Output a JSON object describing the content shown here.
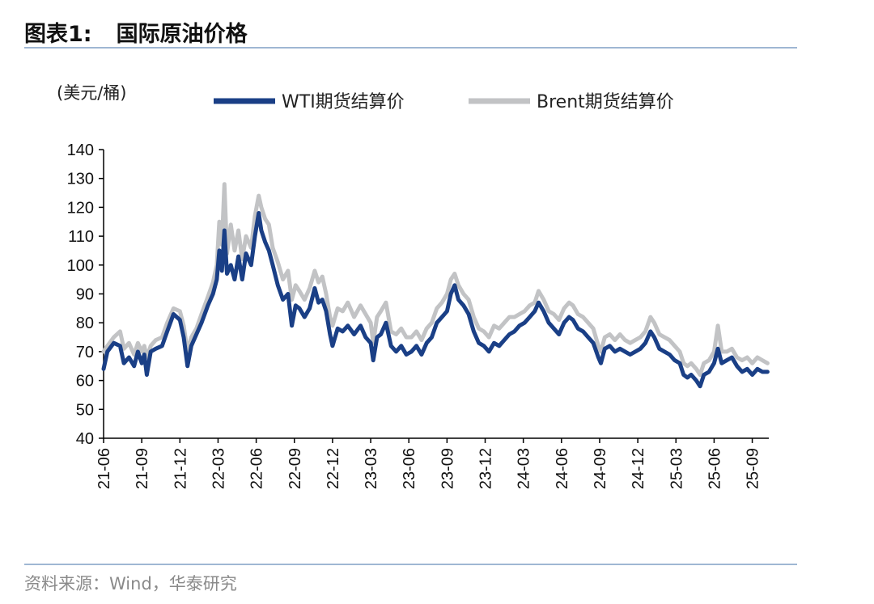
{
  "header": {
    "figure_label": "图表1:",
    "title": "国际原油价格"
  },
  "source": "资料来源：Wind，华泰研究",
  "colors": {
    "wti": "#1a3f86",
    "brent": "#c2c3c5",
    "axis": "#000000",
    "rule": "#9fb7d3"
  },
  "chart_data": {
    "type": "line",
    "title": "国际原油价格",
    "ylabel": "(美元/桶)",
    "xlabel": "",
    "ylim": [
      40,
      140
    ],
    "yticks": [
      40,
      50,
      60,
      70,
      80,
      90,
      100,
      110,
      120,
      130,
      140
    ],
    "xlim": [
      0,
      52.3
    ],
    "xticks": [
      {
        "label": "21-06",
        "pos": 0
      },
      {
        "label": "21-09",
        "pos": 3
      },
      {
        "label": "21-12",
        "pos": 6
      },
      {
        "label": "22-03",
        "pos": 9
      },
      {
        "label": "22-06",
        "pos": 12
      },
      {
        "label": "22-09",
        "pos": 15
      },
      {
        "label": "22-12",
        "pos": 18
      },
      {
        "label": "23-03",
        "pos": 21
      },
      {
        "label": "23-06",
        "pos": 24
      },
      {
        "label": "23-09",
        "pos": 27
      },
      {
        "label": "23-12",
        "pos": 30
      },
      {
        "label": "24-03",
        "pos": 33
      },
      {
        "label": "24-06",
        "pos": 36
      },
      {
        "label": "24-09",
        "pos": 39
      },
      {
        "label": "24-12",
        "pos": 42
      },
      {
        "label": "25-03",
        "pos": 45
      },
      {
        "label": "25-06",
        "pos": 48
      },
      {
        "label": "25-09",
        "pos": 51
      }
    ],
    "legend_position": "top",
    "series": [
      {
        "name": "WTI期货结算价",
        "color": "#1a3f86",
        "points": [
          [
            0,
            64
          ],
          [
            0.3,
            70
          ],
          [
            0.8,
            73
          ],
          [
            1.3,
            72
          ],
          [
            1.6,
            66
          ],
          [
            2,
            68
          ],
          [
            2.4,
            65
          ],
          [
            2.7,
            70
          ],
          [
            3,
            66
          ],
          [
            3.2,
            69
          ],
          [
            3.4,
            62
          ],
          [
            3.7,
            70
          ],
          [
            4.1,
            71
          ],
          [
            4.6,
            72
          ],
          [
            5,
            77
          ],
          [
            5.5,
            83
          ],
          [
            6,
            81
          ],
          [
            6.3,
            75
          ],
          [
            6.6,
            65
          ],
          [
            6.9,
            72
          ],
          [
            7.3,
            76
          ],
          [
            7.7,
            80
          ],
          [
            8.2,
            86
          ],
          [
            8.6,
            90
          ],
          [
            8.9,
            95
          ],
          [
            9.1,
            105
          ],
          [
            9.3,
            98
          ],
          [
            9.5,
            112
          ],
          [
            9.7,
            97
          ],
          [
            10,
            100
          ],
          [
            10.3,
            95
          ],
          [
            10.6,
            103
          ],
          [
            10.9,
            95
          ],
          [
            11.2,
            104
          ],
          [
            11.6,
            100
          ],
          [
            11.9,
            110
          ],
          [
            12.2,
            118
          ],
          [
            12.4,
            112
          ],
          [
            12.7,
            108
          ],
          [
            13,
            105
          ],
          [
            13.3,
            100
          ],
          [
            13.7,
            93
          ],
          [
            14.1,
            88
          ],
          [
            14.5,
            90
          ],
          [
            14.8,
            79
          ],
          [
            15.1,
            86
          ],
          [
            15.4,
            85
          ],
          [
            15.8,
            82
          ],
          [
            16.2,
            85
          ],
          [
            16.6,
            92
          ],
          [
            16.9,
            87
          ],
          [
            17.2,
            88
          ],
          [
            17.5,
            84
          ],
          [
            17.8,
            76
          ],
          [
            18,
            72
          ],
          [
            18.4,
            78
          ],
          [
            18.8,
            77
          ],
          [
            19.2,
            79
          ],
          [
            19.7,
            76
          ],
          [
            20.2,
            79
          ],
          [
            20.6,
            75
          ],
          [
            21,
            73
          ],
          [
            21.2,
            67
          ],
          [
            21.5,
            75
          ],
          [
            21.8,
            76
          ],
          [
            22.2,
            80
          ],
          [
            22.6,
            72
          ],
          [
            23,
            70
          ],
          [
            23.4,
            72
          ],
          [
            23.8,
            69
          ],
          [
            24.2,
            70
          ],
          [
            24.6,
            72
          ],
          [
            25,
            69
          ],
          [
            25.4,
            73
          ],
          [
            25.8,
            75
          ],
          [
            26.2,
            80
          ],
          [
            26.6,
            82
          ],
          [
            27,
            84
          ],
          [
            27.3,
            90
          ],
          [
            27.6,
            93
          ],
          [
            27.9,
            88
          ],
          [
            28.3,
            86
          ],
          [
            28.7,
            83
          ],
          [
            29.1,
            77
          ],
          [
            29.5,
            73
          ],
          [
            29.9,
            72
          ],
          [
            30.3,
            70
          ],
          [
            30.7,
            73
          ],
          [
            31.1,
            72
          ],
          [
            31.5,
            74
          ],
          [
            31.9,
            76
          ],
          [
            32.3,
            77
          ],
          [
            32.7,
            79
          ],
          [
            33.1,
            80
          ],
          [
            33.5,
            82
          ],
          [
            33.9,
            84
          ],
          [
            34.2,
            87
          ],
          [
            34.6,
            84
          ],
          [
            35,
            80
          ],
          [
            35.4,
            78
          ],
          [
            35.8,
            76
          ],
          [
            36.2,
            80
          ],
          [
            36.6,
            82
          ],
          [
            36.9,
            81
          ],
          [
            37.3,
            78
          ],
          [
            37.7,
            77
          ],
          [
            38.1,
            75
          ],
          [
            38.5,
            73
          ],
          [
            38.9,
            68
          ],
          [
            39.1,
            66
          ],
          [
            39.4,
            71
          ],
          [
            39.8,
            72
          ],
          [
            40.2,
            70
          ],
          [
            40.6,
            71
          ],
          [
            41,
            70
          ],
          [
            41.4,
            69
          ],
          [
            41.8,
            70
          ],
          [
            42.2,
            71
          ],
          [
            42.6,
            73
          ],
          [
            43,
            77
          ],
          [
            43.3,
            75
          ],
          [
            43.7,
            71
          ],
          [
            44.1,
            70
          ],
          [
            44.5,
            69
          ],
          [
            44.9,
            67
          ],
          [
            45.3,
            66
          ],
          [
            45.6,
            62
          ],
          [
            45.9,
            61
          ],
          [
            46.2,
            62
          ],
          [
            46.6,
            60
          ],
          [
            46.9,
            58
          ],
          [
            47.2,
            62
          ],
          [
            47.6,
            63
          ],
          [
            48,
            66
          ],
          [
            48.3,
            71
          ],
          [
            48.6,
            66
          ],
          [
            49,
            67
          ],
          [
            49.4,
            68
          ],
          [
            49.8,
            65
          ],
          [
            50.2,
            63
          ],
          [
            50.6,
            64
          ],
          [
            51,
            62
          ],
          [
            51.4,
            64
          ],
          [
            51.8,
            63
          ],
          [
            52.2,
            63
          ]
        ]
      },
      {
        "name": "Brent期货结算价",
        "color": "#c2c3c5",
        "points": [
          [
            0,
            70
          ],
          [
            0.3,
            72
          ],
          [
            0.8,
            75
          ],
          [
            1.3,
            77
          ],
          [
            1.6,
            71
          ],
          [
            2,
            73
          ],
          [
            2.4,
            69
          ],
          [
            2.7,
            73
          ],
          [
            3,
            70
          ],
          [
            3.2,
            72
          ],
          [
            3.4,
            68
          ],
          [
            3.7,
            72
          ],
          [
            4.1,
            74
          ],
          [
            4.6,
            75
          ],
          [
            5,
            80
          ],
          [
            5.5,
            85
          ],
          [
            6,
            84
          ],
          [
            6.3,
            79
          ],
          [
            6.6,
            70
          ],
          [
            6.9,
            75
          ],
          [
            7.3,
            78
          ],
          [
            7.7,
            83
          ],
          [
            8.2,
            89
          ],
          [
            8.6,
            94
          ],
          [
            8.9,
            100
          ],
          [
            9.1,
            115
          ],
          [
            9.3,
            107
          ],
          [
            9.5,
            128
          ],
          [
            9.7,
            104
          ],
          [
            10,
            114
          ],
          [
            10.3,
            105
          ],
          [
            10.6,
            112
          ],
          [
            10.9,
            102
          ],
          [
            11.2,
            110
          ],
          [
            11.6,
            106
          ],
          [
            11.9,
            117
          ],
          [
            12.2,
            124
          ],
          [
            12.4,
            120
          ],
          [
            12.7,
            116
          ],
          [
            13,
            114
          ],
          [
            13.3,
            106
          ],
          [
            13.7,
            101
          ],
          [
            14.1,
            95
          ],
          [
            14.5,
            98
          ],
          [
            14.8,
            88
          ],
          [
            15.1,
            93
          ],
          [
            15.4,
            91
          ],
          [
            15.8,
            88
          ],
          [
            16.2,
            92
          ],
          [
            16.6,
            98
          ],
          [
            16.9,
            94
          ],
          [
            17.2,
            96
          ],
          [
            17.5,
            90
          ],
          [
            17.8,
            82
          ],
          [
            18,
            79
          ],
          [
            18.4,
            85
          ],
          [
            18.8,
            84
          ],
          [
            19.2,
            87
          ],
          [
            19.7,
            82
          ],
          [
            20.2,
            86
          ],
          [
            20.6,
            83
          ],
          [
            21,
            80
          ],
          [
            21.2,
            73
          ],
          [
            21.5,
            82
          ],
          [
            21.8,
            84
          ],
          [
            22.2,
            87
          ],
          [
            22.6,
            77
          ],
          [
            23,
            76
          ],
          [
            23.4,
            78
          ],
          [
            23.8,
            75
          ],
          [
            24.2,
            75
          ],
          [
            24.6,
            77
          ],
          [
            25,
            74
          ],
          [
            25.4,
            78
          ],
          [
            25.8,
            80
          ],
          [
            26.2,
            85
          ],
          [
            26.6,
            87
          ],
          [
            27,
            90
          ],
          [
            27.3,
            95
          ],
          [
            27.6,
            97
          ],
          [
            27.9,
            93
          ],
          [
            28.3,
            90
          ],
          [
            28.7,
            88
          ],
          [
            29.1,
            82
          ],
          [
            29.5,
            78
          ],
          [
            29.9,
            77
          ],
          [
            30.3,
            75
          ],
          [
            30.7,
            79
          ],
          [
            31.1,
            78
          ],
          [
            31.5,
            80
          ],
          [
            31.9,
            82
          ],
          [
            32.3,
            82
          ],
          [
            32.7,
            83
          ],
          [
            33.1,
            84
          ],
          [
            33.5,
            86
          ],
          [
            33.9,
            87
          ],
          [
            34.2,
            91
          ],
          [
            34.6,
            88
          ],
          [
            35,
            84
          ],
          [
            35.4,
            83
          ],
          [
            35.8,
            81
          ],
          [
            36.2,
            85
          ],
          [
            36.6,
            87
          ],
          [
            36.9,
            86
          ],
          [
            37.3,
            83
          ],
          [
            37.7,
            82
          ],
          [
            38.1,
            80
          ],
          [
            38.5,
            78
          ],
          [
            38.9,
            72
          ],
          [
            39.1,
            70
          ],
          [
            39.4,
            75
          ],
          [
            39.8,
            76
          ],
          [
            40.2,
            74
          ],
          [
            40.6,
            76
          ],
          [
            41,
            74
          ],
          [
            41.4,
            73
          ],
          [
            41.8,
            74
          ],
          [
            42.2,
            75
          ],
          [
            42.6,
            77
          ],
          [
            43,
            82
          ],
          [
            43.3,
            80
          ],
          [
            43.7,
            76
          ],
          [
            44.1,
            75
          ],
          [
            44.5,
            74
          ],
          [
            44.9,
            72
          ],
          [
            45.3,
            70
          ],
          [
            45.6,
            66
          ],
          [
            45.9,
            65
          ],
          [
            46.2,
            66
          ],
          [
            46.6,
            64
          ],
          [
            46.9,
            62
          ],
          [
            47.2,
            66
          ],
          [
            47.6,
            67
          ],
          [
            48,
            70
          ],
          [
            48.3,
            79
          ],
          [
            48.6,
            70
          ],
          [
            49,
            70
          ],
          [
            49.4,
            71
          ],
          [
            49.8,
            68
          ],
          [
            50.2,
            67
          ],
          [
            50.6,
            68
          ],
          [
            51,
            66
          ],
          [
            51.4,
            68
          ],
          [
            51.8,
            67
          ],
          [
            52.2,
            66
          ]
        ]
      }
    ]
  }
}
